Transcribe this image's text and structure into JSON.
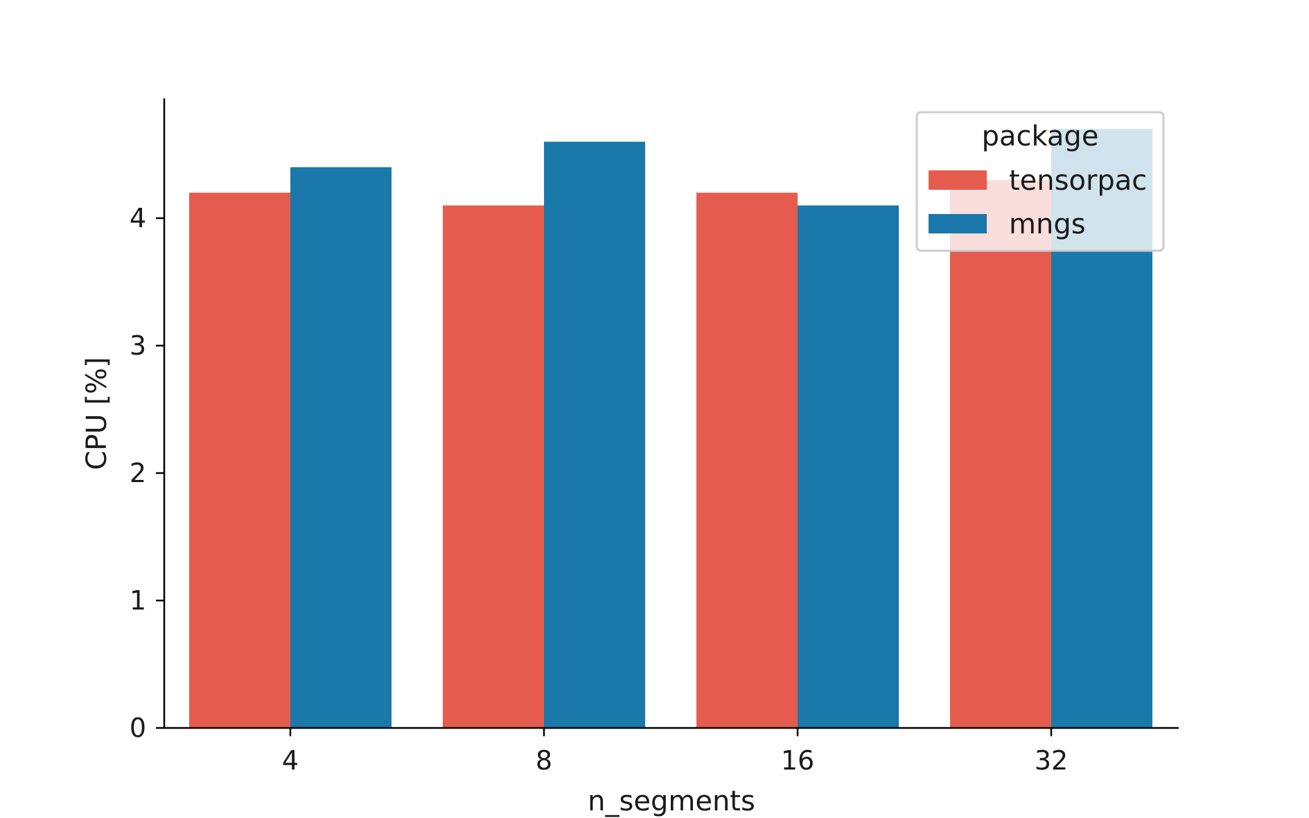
{
  "chart_data": {
    "type": "bar",
    "categories": [
      "4",
      "8",
      "16",
      "32"
    ],
    "series": [
      {
        "name": "tensorpac",
        "values": [
          4.2,
          4.1,
          4.2,
          4.3
        ],
        "color": "#e55c4e"
      },
      {
        "name": "mngs",
        "values": [
          4.4,
          4.6,
          4.1,
          4.7
        ],
        "color": "#1a78aa"
      }
    ],
    "title": "",
    "xlabel": "n_segments",
    "ylabel": "CPU [%]",
    "ylim": [
      0,
      4.95
    ],
    "yticks": [
      "0",
      "1",
      "2",
      "3",
      "4"
    ],
    "grid": false,
    "legend": {
      "title": "package",
      "placement": "top-right"
    }
  }
}
